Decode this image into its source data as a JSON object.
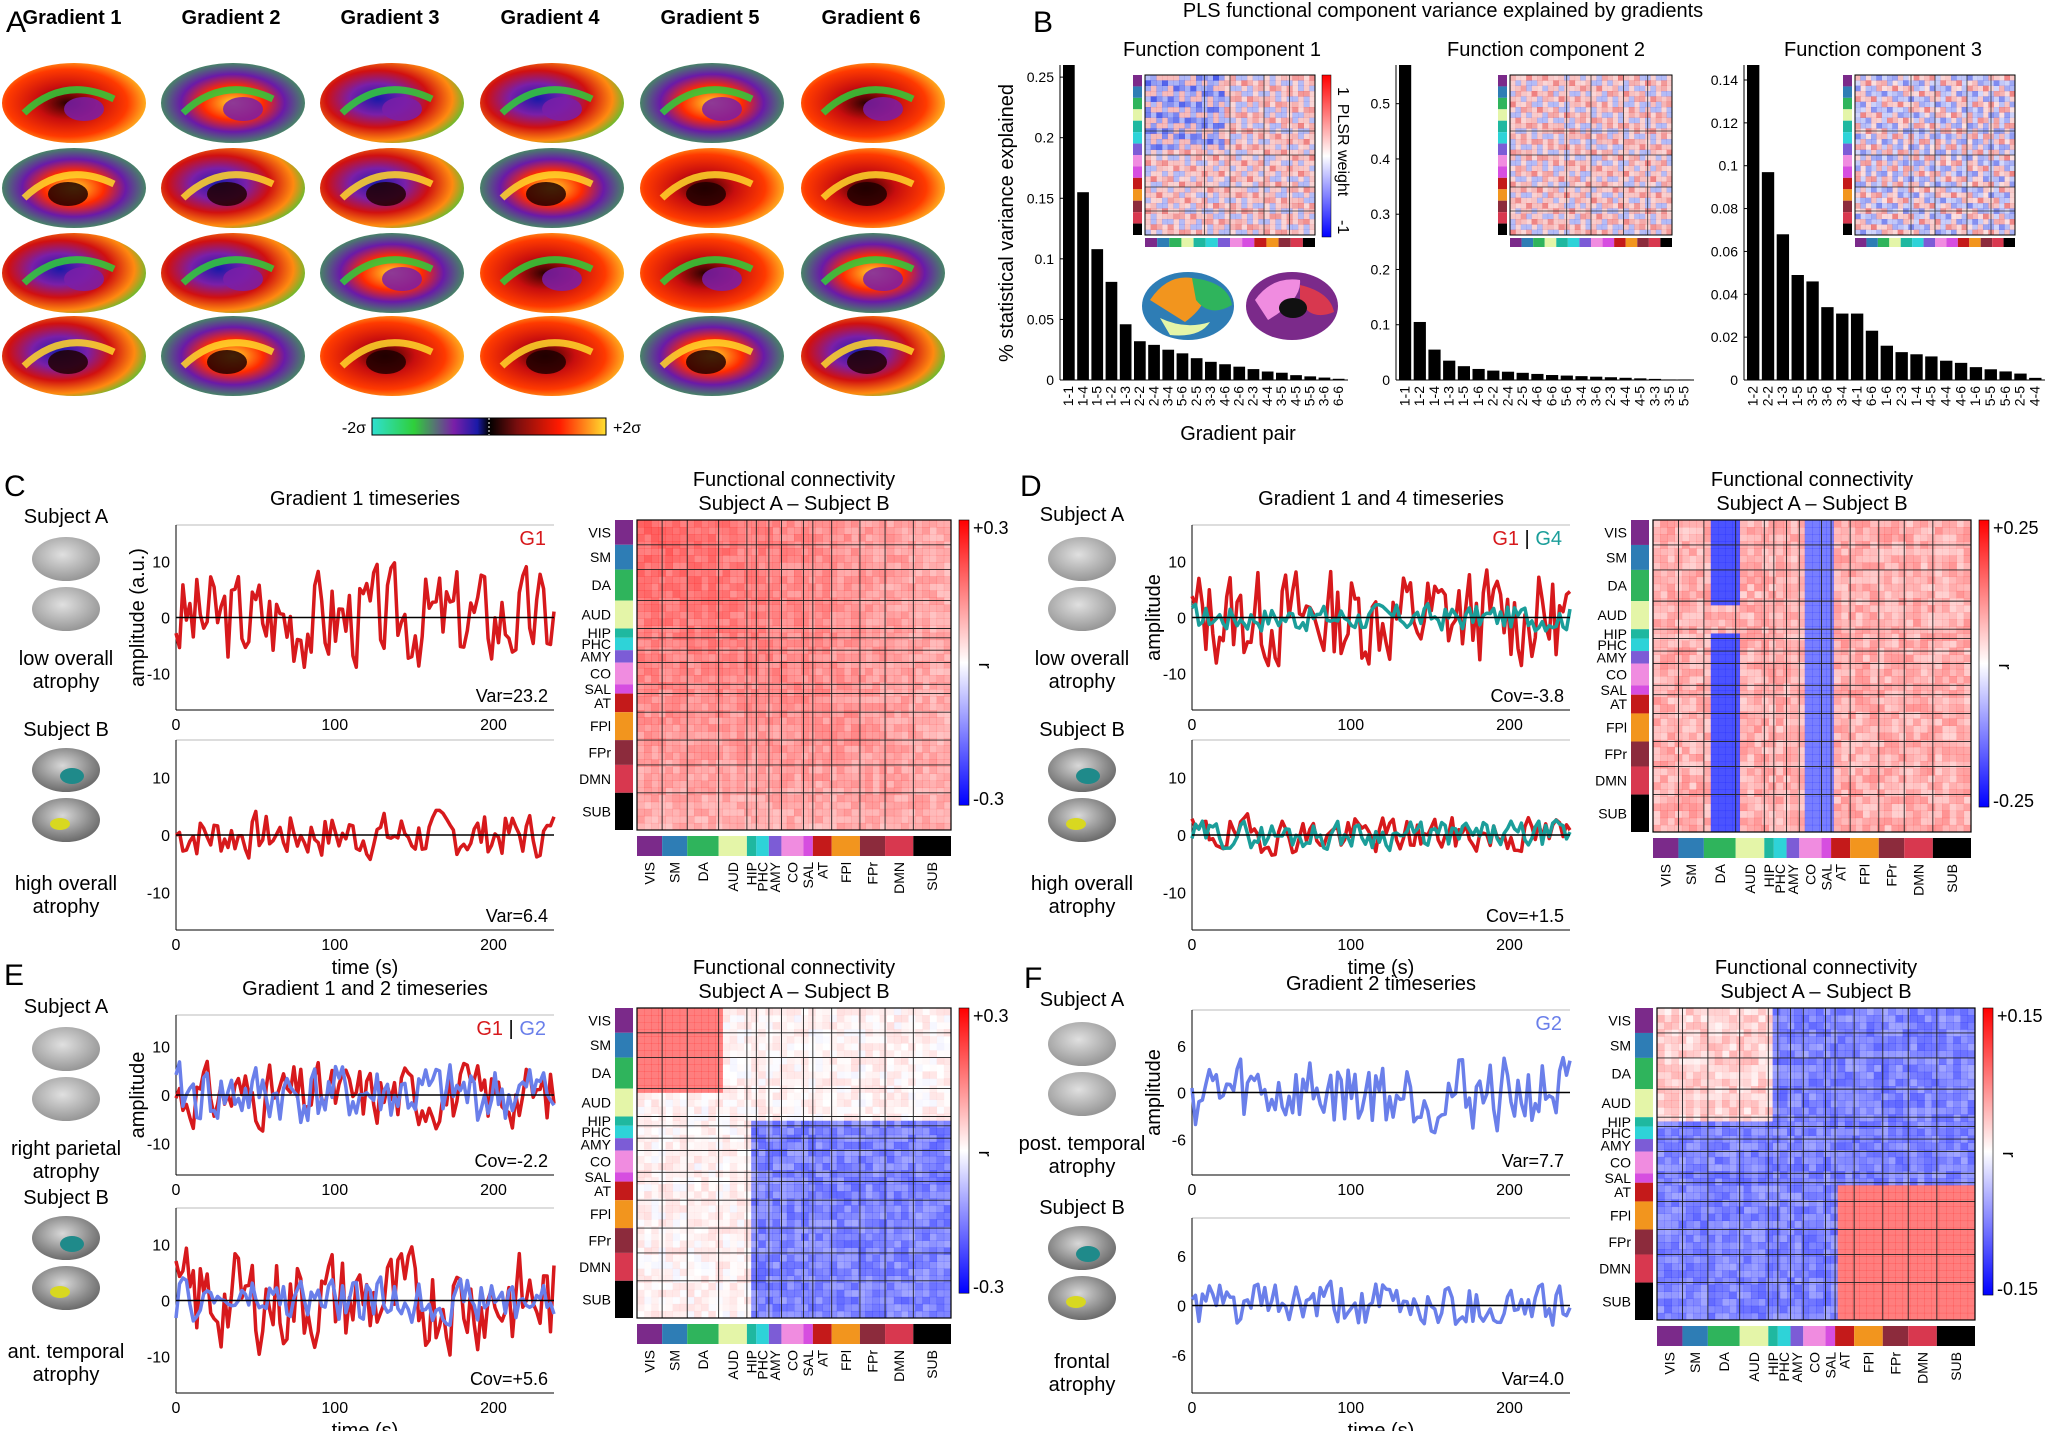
{
  "panelA": {
    "letter": "A",
    "gradient_titles": [
      "Gradient 1",
      "Gradient 2",
      "Gradient 3",
      "Gradient 4",
      "Gradient 5",
      "Gradient 6"
    ],
    "colorbar": {
      "min_label": "-2σ",
      "max_label": "+2σ"
    }
  },
  "panelB": {
    "letter": "B",
    "title": "PLS functional component variance explained by gradients",
    "ylabel": "% statistical variance explained",
    "xlabel": "Gradient pair",
    "heatmap_label": "PLSR weight",
    "heatmap_max": "1",
    "heatmap_min": "-1"
  },
  "chart_data": [
    {
      "type": "bar",
      "title": "Function component 1",
      "categories": [
        "1-1",
        "1-4",
        "1-5",
        "1-2",
        "1-3",
        "2-2",
        "2-4",
        "3-4",
        "5-6",
        "2-5",
        "3-3",
        "4-6",
        "2-6",
        "2-3",
        "4-4",
        "3-5",
        "4-5",
        "5-5",
        "3-6",
        "6-6"
      ],
      "values": [
        0.26,
        0.155,
        0.108,
        0.081,
        0.046,
        0.032,
        0.029,
        0.025,
        0.022,
        0.018,
        0.015,
        0.013,
        0.011,
        0.009,
        0.007,
        0.006,
        0.004,
        0.003,
        0.002,
        0.001
      ],
      "ylim": [
        0,
        0.26
      ],
      "yticks": [
        "0",
        "0.05",
        "0.1",
        "0.15",
        "0.2",
        "0.25"
      ],
      "ytick_values": [
        0,
        0.05,
        0.1,
        0.15,
        0.2,
        0.25
      ]
    },
    {
      "type": "bar",
      "title": "Function component 2",
      "categories": [
        "1-1",
        "1-2",
        "1-4",
        "1-3",
        "1-5",
        "1-6",
        "2-2",
        "2-4",
        "2-5",
        "4-6",
        "6-6",
        "5-6",
        "3-4",
        "3-6",
        "2-3",
        "4-4",
        "4-5",
        "3-3",
        "3-5",
        "5-5"
      ],
      "values": [
        0.57,
        0.105,
        0.055,
        0.035,
        0.025,
        0.02,
        0.017,
        0.015,
        0.013,
        0.011,
        0.009,
        0.008,
        0.007,
        0.006,
        0.005,
        0.004,
        0.003,
        0.002,
        0.001,
        0.001
      ],
      "ylim": [
        0,
        0.57
      ],
      "yticks": [
        "0",
        "0.1",
        "0.2",
        "0.3",
        "0.4",
        "0.5"
      ],
      "ytick_values": [
        0,
        0.1,
        0.2,
        0.3,
        0.4,
        0.5
      ]
    },
    {
      "type": "bar",
      "title": "Function component 3",
      "categories": [
        "1-2",
        "2-2",
        "1-3",
        "1-5",
        "3-5",
        "3-6",
        "3-4",
        "4-1",
        "6-6",
        "1-6",
        "2-3",
        "1-4",
        "4-5",
        "4-4",
        "4-6",
        "1-6",
        "5-5",
        "5-6",
        "2-5",
        "4-4"
      ],
      "values": [
        0.147,
        0.097,
        0.068,
        0.049,
        0.046,
        0.034,
        0.031,
        0.031,
        0.023,
        0.016,
        0.013,
        0.012,
        0.011,
        0.009,
        0.008,
        0.006,
        0.005,
        0.004,
        0.003,
        0.001
      ],
      "ylim": [
        0,
        0.147
      ],
      "yticks": [
        "0",
        "0.02",
        "0.04",
        "0.06",
        "0.08",
        "0.1",
        "0.12",
        "0.14"
      ],
      "ytick_values": [
        0,
        0.02,
        0.04,
        0.06,
        0.08,
        0.1,
        0.12,
        0.14
      ]
    }
  ],
  "networks": [
    "VIS",
    "SM",
    "DA",
    "AUD",
    "HIP",
    "PHC",
    "AMY",
    "CO",
    "SAL",
    "AT",
    "FPl",
    "FPr",
    "DMN",
    "SUB"
  ],
  "network_colors": [
    "#7b2a8a",
    "#2e7db5",
    "#2fb45c",
    "#e4f5a8",
    "#1fb8a0",
    "#2ed3d8",
    "#7c5cd6",
    "#f08ce0",
    "#d64ee0",
    "#c41a1a",
    "#f2951e",
    "#8c2b3c",
    "#d8384f",
    "#000000"
  ],
  "colors": {
    "g1": "#d7191c",
    "g2": "#6a7fea",
    "g4": "#1b9e9a"
  },
  "panelC": {
    "letter": "C",
    "ts_title": "Gradient 1 timeseries",
    "legend": "G1",
    "ylabel": "amplitude (a.u.)",
    "xlabel": "time (s)",
    "subjA": {
      "name": "Subject A",
      "desc": [
        "low overall",
        "atrophy"
      ],
      "stat": "Var=23.2",
      "yticks": [
        "10",
        "0",
        "-10"
      ]
    },
    "subjB": {
      "name": "Subject B",
      "desc": [
        "high overall",
        "atrophy"
      ],
      "stat": "Var=6.4",
      "yticks": [
        "10",
        "0",
        "-10"
      ]
    },
    "xticks": [
      "0",
      "100",
      "200"
    ],
    "fc_title": [
      "Functional connectivity",
      "Subject A – Subject B"
    ],
    "cbar": {
      "max": "+0.3",
      "min": "-0.3",
      "label": "r"
    }
  },
  "panelD": {
    "letter": "D",
    "ts_title": "Gradient 1 and 4 timeseries",
    "legend_a": "G1",
    "legend_sep": "|",
    "legend_b": "G4",
    "ylabel": "amplitude",
    "xlabel": "time (s)",
    "subjA": {
      "name": "Subject A",
      "desc": [
        "low overall",
        "atrophy"
      ],
      "stat": "Cov=-3.8",
      "yticks": [
        "10",
        "0",
        "-10"
      ]
    },
    "subjB": {
      "name": "Subject B",
      "desc": [
        "high overall",
        "atrophy"
      ],
      "stat": "Cov=+1.5",
      "yticks": [
        "10",
        "0",
        "-10"
      ]
    },
    "xticks": [
      "0",
      "100",
      "200"
    ],
    "fc_title": [
      "Functional connectivity",
      "Subject A – Subject B"
    ],
    "cbar": {
      "max": "+0.25",
      "min": "-0.25",
      "label": "r"
    }
  },
  "panelE": {
    "letter": "E",
    "ts_title": "Gradient 1 and 2 timeseries",
    "legend_a": "G1",
    "legend_sep": "|",
    "legend_b": "G2",
    "ylabel": "amplitude",
    "xlabel": "time (s)",
    "subjA": {
      "name": "Subject A",
      "desc": [
        "right parietal",
        "atrophy"
      ],
      "stat": "Cov=-2.2",
      "yticks": [
        "10",
        "0",
        "-10"
      ]
    },
    "subjB": {
      "name": "Subject B",
      "desc": [
        "ant. temporal",
        "atrophy"
      ],
      "stat": "Cov=+5.6",
      "yticks": [
        "10",
        "0",
        "-10"
      ]
    },
    "xticks": [
      "0",
      "100",
      "200"
    ],
    "fc_title": [
      "Functional connectivity",
      "Subject A – Subject B"
    ],
    "cbar": {
      "max": "+0.3",
      "min": "-0.3",
      "label": "r"
    }
  },
  "panelF": {
    "letter": "F",
    "ts_title": "Gradient 2 timeseries",
    "legend": "G2",
    "ylabel": "amplitude",
    "xlabel": "time (s)",
    "subjA": {
      "name": "Subject A",
      "desc": [
        "post. temporal",
        "atrophy"
      ],
      "stat": "Var=7.7",
      "yticks": [
        "6",
        "0",
        "-6"
      ]
    },
    "subjB": {
      "name": "Subject B",
      "desc": [
        "frontal",
        "atrophy"
      ],
      "stat": "Var=4.0",
      "yticks": [
        "6",
        "0",
        "-6"
      ]
    },
    "xticks": [
      "0",
      "100",
      "200"
    ],
    "fc_title": [
      "Functional connectivity",
      "Subject A – Subject B"
    ],
    "cbar": {
      "max": "+0.15",
      "min": "-0.15",
      "label": "r"
    }
  }
}
